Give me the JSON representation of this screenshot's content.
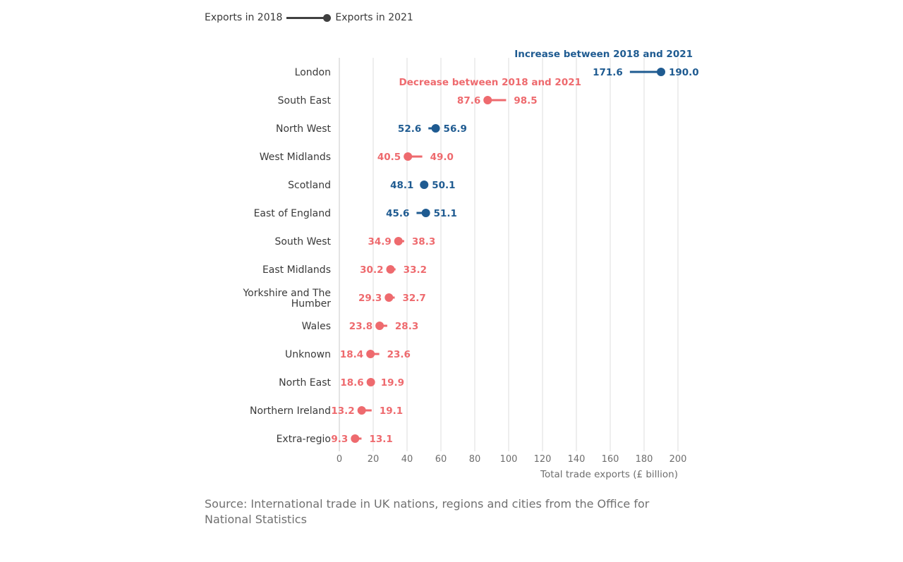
{
  "legend": {
    "start_label": "Exports in 2018",
    "end_label": "Exports in 2021"
  },
  "source": "Source: International trade in UK nations, regions and cities from the Office for National Statistics",
  "colors": {
    "increase": "#1f5b91",
    "decrease": "#ee6a6e",
    "legend": "#404040",
    "axis_text": "#6e6e6e",
    "grid": "#dddddd"
  },
  "chart_data": {
    "type": "dumbbell",
    "xlabel": "Total trade exports (£ billion)",
    "ylabel": "",
    "xlim": [
      0,
      200
    ],
    "xticks": [
      0,
      20,
      40,
      60,
      80,
      100,
      120,
      140,
      160,
      180,
      200
    ],
    "grid": true,
    "annotations": {
      "increase": "Increase between 2018 and 2021",
      "decrease": "Decrease between 2018 and 2021"
    },
    "rows": [
      {
        "label": "London",
        "v2018": 171.6,
        "v2021": 190.0,
        "s2018": "171.6",
        "s2021": "190.0",
        "trend": "increase"
      },
      {
        "label": "South East",
        "v2018": 98.5,
        "v2021": 87.6,
        "s2018": "98.5",
        "s2021": "87.6",
        "trend": "decrease"
      },
      {
        "label": "North West",
        "v2018": 52.6,
        "v2021": 56.9,
        "s2018": "52.6",
        "s2021": "56.9",
        "trend": "increase"
      },
      {
        "label": "West Midlands",
        "v2018": 49.0,
        "v2021": 40.5,
        "s2018": "49.0",
        "s2021": "40.5",
        "trend": "decrease"
      },
      {
        "label": "Scotland",
        "v2018": 48.1,
        "v2021": 50.1,
        "s2018": "48.1",
        "s2021": "50.1",
        "trend": "increase"
      },
      {
        "label": "East of England",
        "v2018": 45.6,
        "v2021": 51.1,
        "s2018": "45.6",
        "s2021": "51.1",
        "trend": "increase"
      },
      {
        "label": "South West",
        "v2018": 38.3,
        "v2021": 34.9,
        "s2018": "38.3",
        "s2021": "34.9",
        "trend": "decrease"
      },
      {
        "label": "East Midlands",
        "v2018": 33.2,
        "v2021": 30.2,
        "s2018": "33.2",
        "s2021": "30.2",
        "trend": "decrease"
      },
      {
        "label": "Yorkshire and The Humber",
        "label_lines": [
          "Yorkshire and The",
          "Humber"
        ],
        "v2018": 32.7,
        "v2021": 29.3,
        "s2018": "32.7",
        "s2021": "29.3",
        "trend": "decrease"
      },
      {
        "label": "Wales",
        "v2018": 28.3,
        "v2021": 23.8,
        "s2018": "28.3",
        "s2021": "23.8",
        "trend": "decrease"
      },
      {
        "label": "Unknown",
        "v2018": 23.6,
        "v2021": 18.4,
        "s2018": "23.6",
        "s2021": "18.4",
        "trend": "decrease"
      },
      {
        "label": "North East",
        "v2018": 19.9,
        "v2021": 18.6,
        "s2018": "19.9",
        "s2021": "18.6",
        "trend": "decrease"
      },
      {
        "label": "Northern Ireland",
        "v2018": 19.1,
        "v2021": 13.2,
        "s2018": "19.1",
        "s2021": "13.2",
        "trend": "decrease"
      },
      {
        "label": "Extra-regio",
        "v2018": 13.1,
        "v2021": 9.3,
        "s2018": "13.1",
        "s2021": "9.3",
        "trend": "decrease"
      }
    ]
  }
}
